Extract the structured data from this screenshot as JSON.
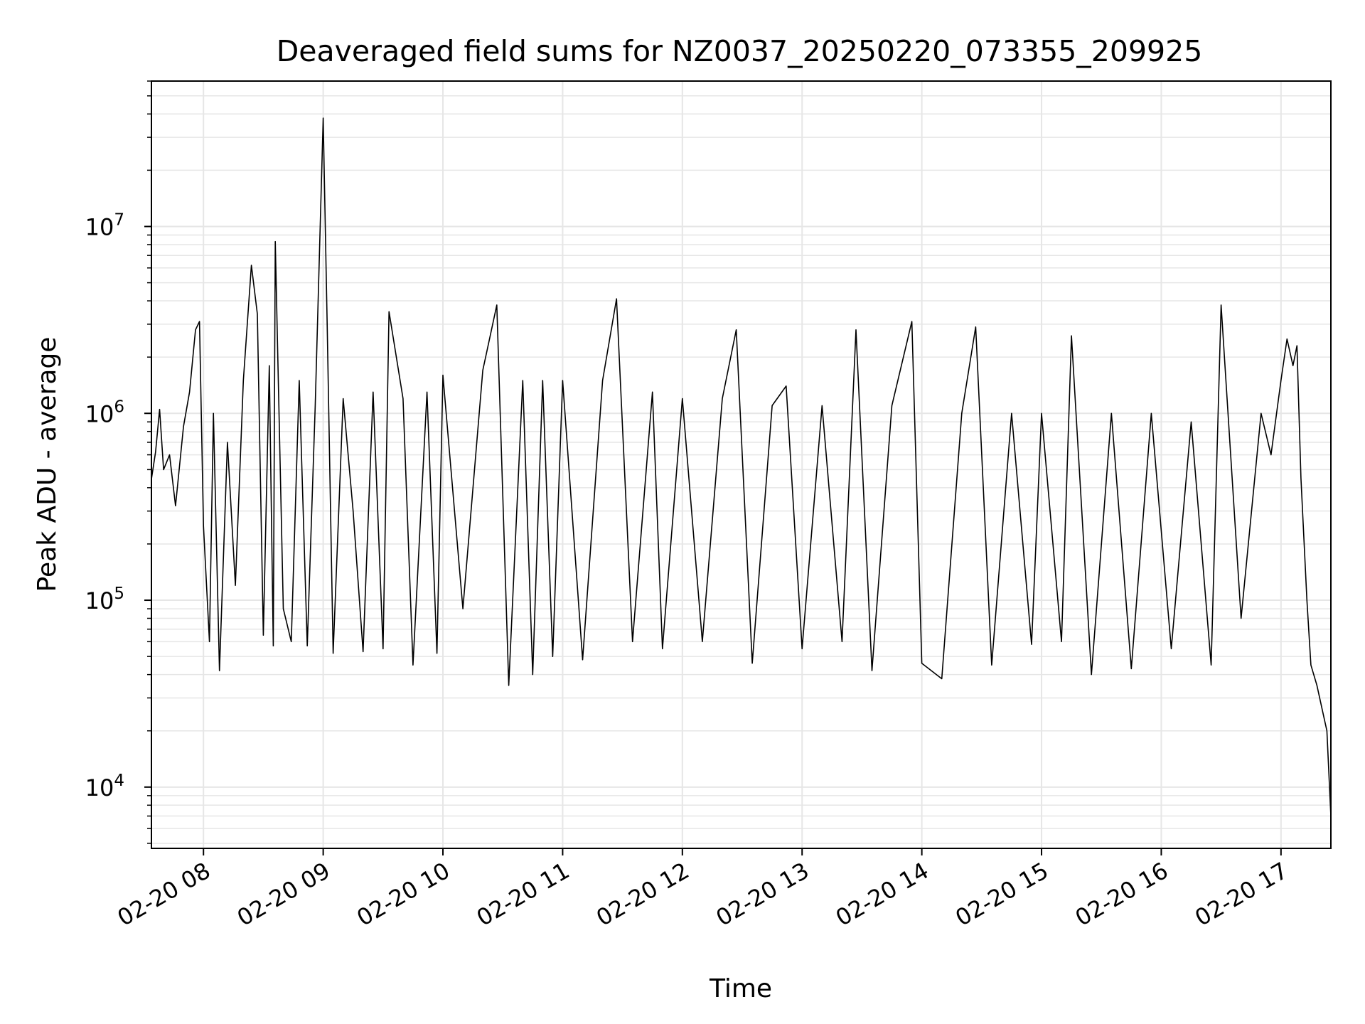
{
  "chart_data": {
    "type": "line",
    "title": "Deaveraged field sums for NZ0037_20250220_073355_209925",
    "xlabel": "Time",
    "ylabel": "Peak ADU - average",
    "yscale": "log",
    "ylim": [
      4700,
      60000000
    ],
    "xlim": [
      "2025-02-20 07:33:55",
      "2025-02-20 17:25:00"
    ],
    "grid": true,
    "line_color": "#000000",
    "grid_color": "#e6e6e6",
    "x_ticks": [
      {
        "t": "2025-02-20 08:00",
        "label": "02-20 08"
      },
      {
        "t": "2025-02-20 09:00",
        "label": "02-20 09"
      },
      {
        "t": "2025-02-20 10:00",
        "label": "02-20 10"
      },
      {
        "t": "2025-02-20 11:00",
        "label": "02-20 11"
      },
      {
        "t": "2025-02-20 12:00",
        "label": "02-20 12"
      },
      {
        "t": "2025-02-20 13:00",
        "label": "02-20 13"
      },
      {
        "t": "2025-02-20 14:00",
        "label": "02-20 14"
      },
      {
        "t": "2025-02-20 15:00",
        "label": "02-20 15"
      },
      {
        "t": "2025-02-20 16:00",
        "label": "02-20 16"
      },
      {
        "t": "2025-02-20 17:00",
        "label": "02-20 17"
      }
    ],
    "y_ticks": [
      {
        "value": 10000,
        "base": "10",
        "exp": "4"
      },
      {
        "value": 100000,
        "base": "10",
        "exp": "5"
      },
      {
        "value": 1000000,
        "base": "10",
        "exp": "6"
      },
      {
        "value": 10000000,
        "base": "10",
        "exp": "7"
      }
    ],
    "points": [
      [
        "2025-02-20 07:34",
        450000
      ],
      [
        "2025-02-20 07:36",
        620000
      ],
      [
        "2025-02-20 07:38",
        1050000
      ],
      [
        "2025-02-20 07:40",
        500000
      ],
      [
        "2025-02-20 07:43",
        600000
      ],
      [
        "2025-02-20 07:46",
        320000
      ],
      [
        "2025-02-20 07:50",
        850000
      ],
      [
        "2025-02-20 07:53",
        1300000
      ],
      [
        "2025-02-20 07:56",
        2800000
      ],
      [
        "2025-02-20 07:58",
        3100000
      ],
      [
        "2025-02-20 08:00",
        250000
      ],
      [
        "2025-02-20 08:03",
        60000
      ],
      [
        "2025-02-20 08:05",
        1000000
      ],
      [
        "2025-02-20 08:08",
        42000
      ],
      [
        "2025-02-20 08:12",
        700000
      ],
      [
        "2025-02-20 08:16",
        120000
      ],
      [
        "2025-02-20 08:20",
        1500000
      ],
      [
        "2025-02-20 08:24",
        6200000
      ],
      [
        "2025-02-20 08:27",
        3400000
      ],
      [
        "2025-02-20 08:30",
        65000
      ],
      [
        "2025-02-20 08:33",
        1800000
      ],
      [
        "2025-02-20 08:35",
        57000
      ],
      [
        "2025-02-20 08:36",
        8300000
      ],
      [
        "2025-02-20 08:40",
        90000
      ],
      [
        "2025-02-20 08:44",
        60000
      ],
      [
        "2025-02-20 08:48",
        1500000
      ],
      [
        "2025-02-20 08:52",
        57000
      ],
      [
        "2025-02-20 08:56",
        1100000
      ],
      [
        "2025-02-20 09:00",
        38000000
      ],
      [
        "2025-02-20 09:02",
        3000000
      ],
      [
        "2025-02-20 09:05",
        52000
      ],
      [
        "2025-02-20 09:10",
        1200000
      ],
      [
        "2025-02-20 09:15",
        300000
      ],
      [
        "2025-02-20 09:20",
        53000
      ],
      [
        "2025-02-20 09:25",
        1300000
      ],
      [
        "2025-02-20 09:30",
        55000
      ],
      [
        "2025-02-20 09:33",
        3500000
      ],
      [
        "2025-02-20 09:40",
        1200000
      ],
      [
        "2025-02-20 09:45",
        45000
      ],
      [
        "2025-02-20 09:52",
        1300000
      ],
      [
        "2025-02-20 09:57",
        52000
      ],
      [
        "2025-02-20 10:00",
        1600000
      ],
      [
        "2025-02-20 10:10",
        90000
      ],
      [
        "2025-02-20 10:20",
        1700000
      ],
      [
        "2025-02-20 10:27",
        3800000
      ],
      [
        "2025-02-20 10:33",
        35000
      ],
      [
        "2025-02-20 10:40",
        1500000
      ],
      [
        "2025-02-20 10:45",
        40000
      ],
      [
        "2025-02-20 10:50",
        1500000
      ],
      [
        "2025-02-20 10:55",
        50000
      ],
      [
        "2025-02-20 11:00",
        1500000
      ],
      [
        "2025-02-20 11:10",
        48000
      ],
      [
        "2025-02-20 11:20",
        1500000
      ],
      [
        "2025-02-20 11:27",
        4100000
      ],
      [
        "2025-02-20 11:35",
        60000
      ],
      [
        "2025-02-20 11:45",
        1300000
      ],
      [
        "2025-02-20 11:50",
        55000
      ],
      [
        "2025-02-20 12:00",
        1200000
      ],
      [
        "2025-02-20 12:10",
        60000
      ],
      [
        "2025-02-20 12:20",
        1200000
      ],
      [
        "2025-02-20 12:27",
        2800000
      ],
      [
        "2025-02-20 12:35",
        46000
      ],
      [
        "2025-02-20 12:45",
        1100000
      ],
      [
        "2025-02-20 12:52",
        1400000
      ],
      [
        "2025-02-20 13:00",
        55000
      ],
      [
        "2025-02-20 13:10",
        1100000
      ],
      [
        "2025-02-20 13:20",
        60000
      ],
      [
        "2025-02-20 13:27",
        2800000
      ],
      [
        "2025-02-20 13:35",
        42000
      ],
      [
        "2025-02-20 13:45",
        1100000
      ],
      [
        "2025-02-20 13:55",
        3100000
      ],
      [
        "2025-02-20 14:00",
        46000
      ],
      [
        "2025-02-20 14:10",
        38000
      ],
      [
        "2025-02-20 14:20",
        1000000
      ],
      [
        "2025-02-20 14:27",
        2900000
      ],
      [
        "2025-02-20 14:35",
        45000
      ],
      [
        "2025-02-20 14:45",
        1000000
      ],
      [
        "2025-02-20 14:55",
        58000
      ],
      [
        "2025-02-20 15:00",
        1000000
      ],
      [
        "2025-02-20 15:10",
        60000
      ],
      [
        "2025-02-20 15:15",
        2600000
      ],
      [
        "2025-02-20 15:25",
        40000
      ],
      [
        "2025-02-20 15:35",
        1000000
      ],
      [
        "2025-02-20 15:45",
        43000
      ],
      [
        "2025-02-20 15:55",
        1000000
      ],
      [
        "2025-02-20 16:05",
        55000
      ],
      [
        "2025-02-20 16:15",
        900000
      ],
      [
        "2025-02-20 16:25",
        45000
      ],
      [
        "2025-02-20 16:30",
        3800000
      ],
      [
        "2025-02-20 16:40",
        80000
      ],
      [
        "2025-02-20 16:50",
        1000000
      ],
      [
        "2025-02-20 16:55",
        600000
      ],
      [
        "2025-02-20 17:00",
        1500000
      ],
      [
        "2025-02-20 17:03",
        2500000
      ],
      [
        "2025-02-20 17:06",
        1800000
      ],
      [
        "2025-02-20 17:08",
        2300000
      ],
      [
        "2025-02-20 17:10",
        450000
      ],
      [
        "2025-02-20 17:13",
        100000
      ],
      [
        "2025-02-20 17:15",
        45000
      ],
      [
        "2025-02-20 17:18",
        35000
      ],
      [
        "2025-02-20 17:21",
        25000
      ],
      [
        "2025-02-20 17:23",
        20000
      ],
      [
        "2025-02-20 17:25",
        7000
      ]
    ]
  }
}
